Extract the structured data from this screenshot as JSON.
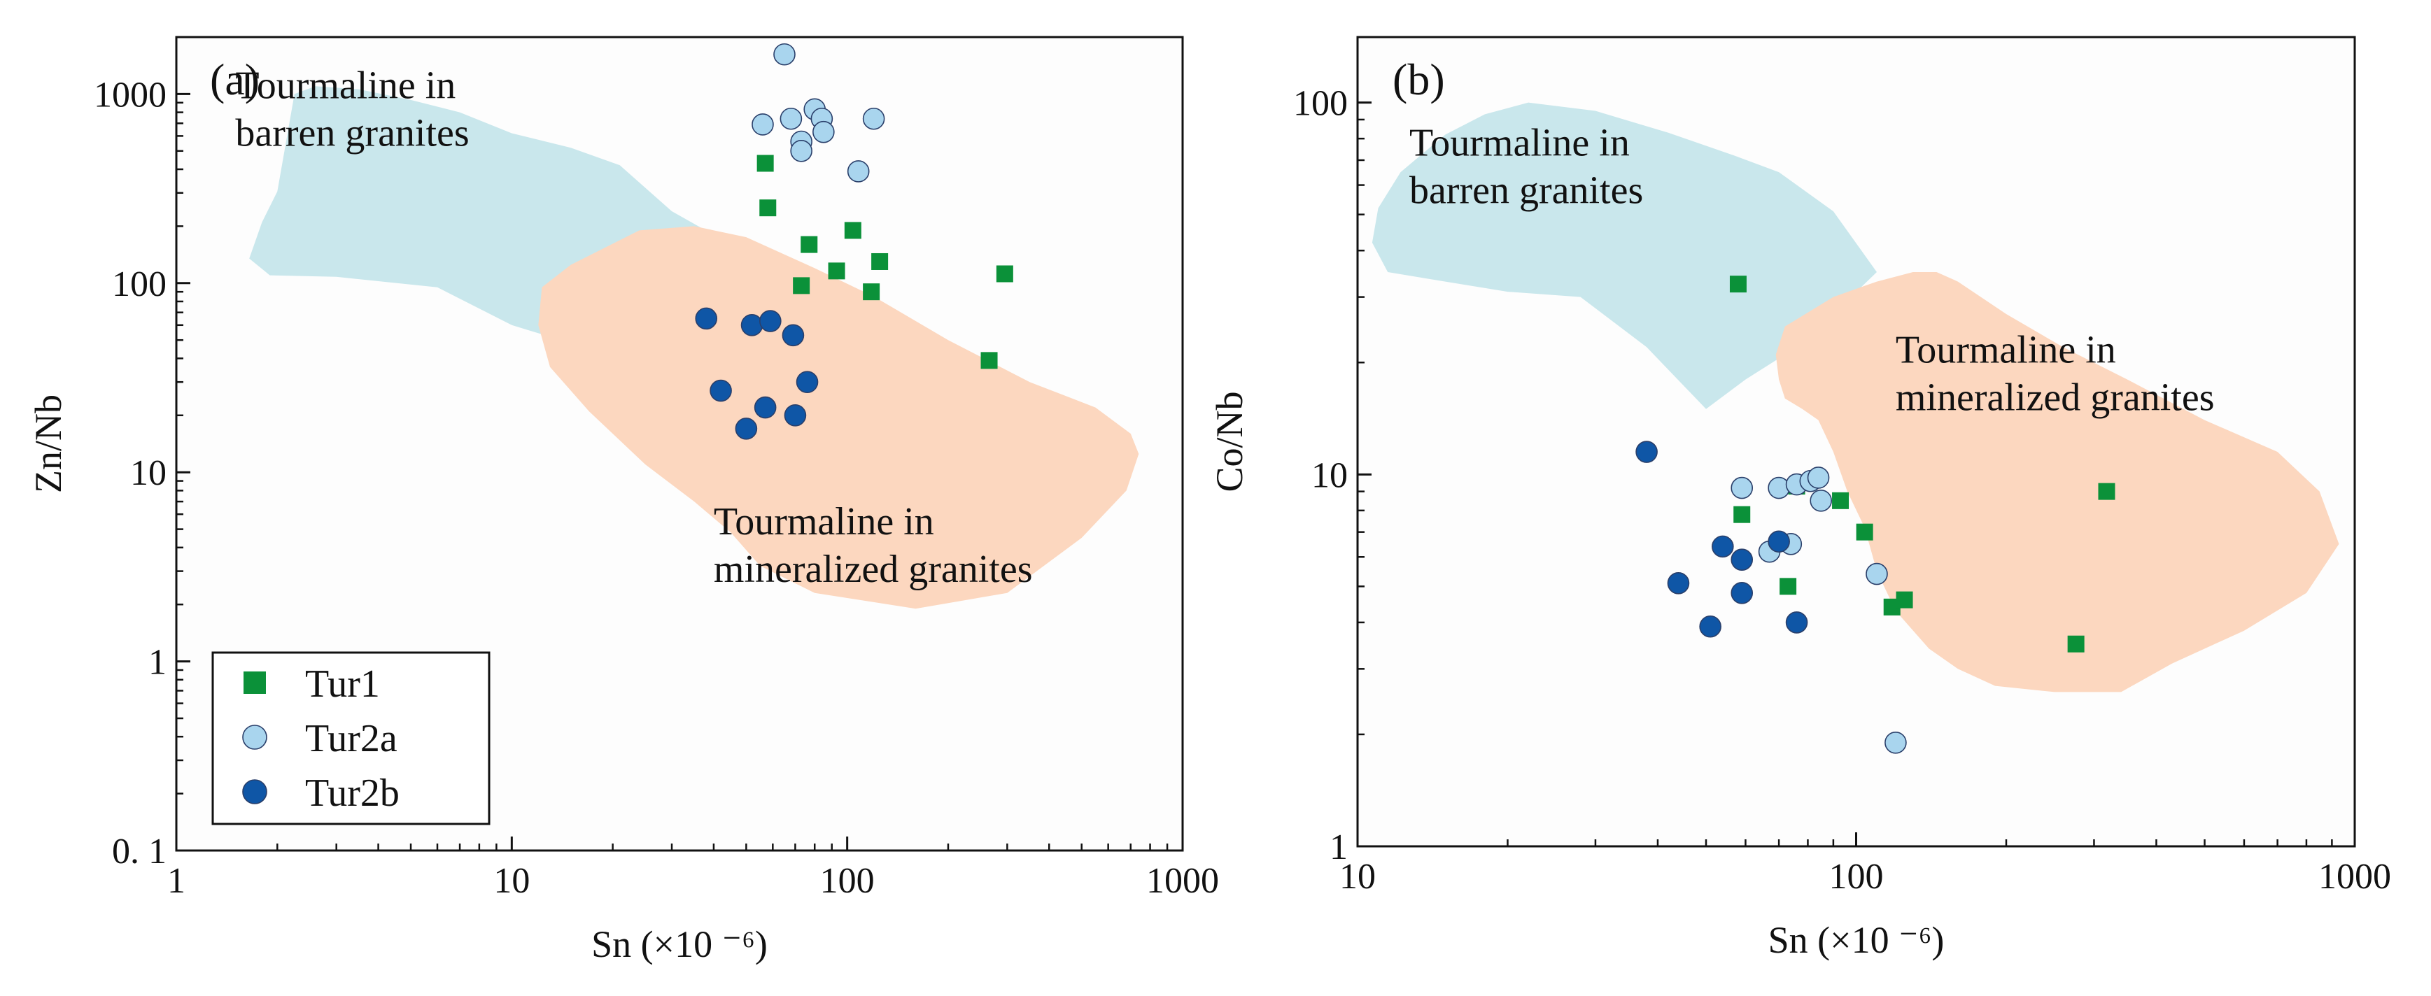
{
  "colors": {
    "tur1": "#0b9139",
    "tur2a": "#a9d5ee",
    "tur2b": "#0f56a6",
    "barren_field": "#c9e7ec",
    "mineralized_field": "#fcd7bf",
    "marker_edge": "#2a3f6a",
    "axis": "#111111"
  },
  "legend": [
    {
      "label": "Tur1",
      "marker": "square",
      "color_key": "tur1"
    },
    {
      "label": "Tur2a",
      "marker": "circle",
      "color_key": "tur2a"
    },
    {
      "label": "Tur2b",
      "marker": "circle",
      "color_key": "tur2b"
    }
  ],
  "chart_data": [
    {
      "type": "scatter",
      "panel_label": "(a)",
      "xlabel": "Sn (×10 ⁻⁶)",
      "ylabel": "Zn/Nb",
      "xscale": "log",
      "yscale": "log",
      "xlim": [
        1,
        1000
      ],
      "ylim": [
        0.1,
        2000
      ],
      "x_ticks": [
        1,
        10,
        100,
        1000
      ],
      "x_tick_labels": [
        "1",
        "10",
        "100",
        "1000"
      ],
      "y_ticks": [
        0.1,
        1,
        10,
        100,
        1000
      ],
      "y_tick_labels": [
        "0. 1",
        "1",
        "10",
        "100",
        "1000"
      ],
      "legend_position": "bottom-left",
      "fields": [
        {
          "label": "Tourmaline in barren granites",
          "label_lines": [
            "Tourmaline in",
            "barren granites"
          ],
          "label_anchor": [
            1.5,
            950
          ],
          "color_key": "barren_field",
          "polygon": [
            [
              2.25,
              1000
            ],
            [
              2.6,
              1100
            ],
            [
              3.5,
              1060
            ],
            [
              5,
              930
            ],
            [
              7,
              800
            ],
            [
              10,
              620
            ],
            [
              15,
              520
            ],
            [
              21,
              420
            ],
            [
              30,
              240
            ],
            [
              45,
              160
            ],
            [
              38,
              85
            ],
            [
              20,
              48
            ],
            [
              14,
              50
            ],
            [
              10,
              60
            ],
            [
              6,
              95
            ],
            [
              3,
              108
            ],
            [
              1.9,
              110
            ],
            [
              1.65,
              135
            ],
            [
              1.8,
              210
            ],
            [
              2.0,
              305
            ],
            [
              2.1,
              500
            ]
          ]
        },
        {
          "label": "Tourmaline in mineralized granites",
          "label_lines": [
            "Tourmaline in",
            "mineralized granites"
          ],
          "label_anchor": [
            40,
            4.7
          ],
          "color_key": "mineralized_field",
          "polygon": [
            [
              15,
              125
            ],
            [
              24,
              190
            ],
            [
              35,
              200
            ],
            [
              50,
              175
            ],
            [
              80,
              120
            ],
            [
              120,
              85
            ],
            [
              200,
              50
            ],
            [
              350,
              30
            ],
            [
              550,
              22
            ],
            [
              700,
              16
            ],
            [
              740,
              12.5
            ],
            [
              680,
              8
            ],
            [
              500,
              4.5
            ],
            [
              300,
              2.3
            ],
            [
              160,
              1.9
            ],
            [
              80,
              2.3
            ],
            [
              55,
              3.2
            ],
            [
              45,
              4.8
            ],
            [
              35,
              7
            ],
            [
              25,
              11
            ],
            [
              17,
              21
            ],
            [
              13,
              36
            ],
            [
              12,
              60
            ],
            [
              12.3,
              95
            ]
          ]
        }
      ],
      "series": [
        {
          "name": "Tur1",
          "marker": "square",
          "color_key": "tur1",
          "points": [
            [
              57,
              430
            ],
            [
              58,
              250
            ],
            [
              77,
              160
            ],
            [
              73,
              97
            ],
            [
              104,
              190
            ],
            [
              93,
              116
            ],
            [
              118,
              90
            ],
            [
              125,
              130
            ],
            [
              295,
              112
            ],
            [
              265,
              39
            ]
          ]
        },
        {
          "name": "Tur2a",
          "marker": "circle",
          "color_key": "tur2a",
          "points": [
            [
              65,
              1620
            ],
            [
              56,
              690
            ],
            [
              68,
              740
            ],
            [
              80,
              830
            ],
            [
              84,
              740
            ],
            [
              85,
              630
            ],
            [
              120,
              740
            ],
            [
              73,
              560
            ],
            [
              73,
              500
            ],
            [
              108,
              390
            ]
          ]
        },
        {
          "name": "Tur2b",
          "marker": "circle",
          "color_key": "tur2b",
          "points": [
            [
              38,
              65
            ],
            [
              52,
              60
            ],
            [
              59,
              63
            ],
            [
              69,
              53
            ],
            [
              42,
              27
            ],
            [
              57,
              22
            ],
            [
              76,
              30
            ],
            [
              50,
              17
            ],
            [
              70,
              20
            ]
          ]
        }
      ]
    },
    {
      "type": "scatter",
      "panel_label": "(b)",
      "xlabel": "Sn (×10 ⁻⁶)",
      "ylabel": "Co/Nb",
      "xscale": "log",
      "yscale": "log",
      "xlim": [
        10,
        1000
      ],
      "ylim": [
        1,
        150
      ],
      "x_ticks": [
        10,
        100,
        1000
      ],
      "x_tick_labels": [
        "10",
        "100",
        "1000"
      ],
      "y_ticks": [
        1,
        10,
        100
      ],
      "y_tick_labels": [
        "1",
        "10",
        "100"
      ],
      "fields": [
        {
          "label": "Tourmaline in barren granites",
          "label_lines": [
            "Tourmaline in",
            "barren granites"
          ],
          "label_anchor": [
            12.7,
            72
          ],
          "color_key": "barren_field",
          "polygon": [
            [
              12.2,
              65
            ],
            [
              15,
              82
            ],
            [
              18,
              93
            ],
            [
              22,
              100
            ],
            [
              30,
              95
            ],
            [
              42,
              83
            ],
            [
              57,
              72
            ],
            [
              70,
              65
            ],
            [
              90,
              51
            ],
            [
              110,
              35
            ],
            [
              90,
              27
            ],
            [
              72,
              21
            ],
            [
              60,
              18
            ],
            [
              50,
              15
            ],
            [
              38,
              22
            ],
            [
              28,
              30
            ],
            [
              20,
              31
            ],
            [
              15,
              33
            ],
            [
              11.5,
              35
            ],
            [
              10.7,
              42
            ],
            [
              11,
              52
            ]
          ]
        },
        {
          "label": "Tourmaline in mineralized granites",
          "label_lines": [
            "Tourmaline in",
            "mineralized granites"
          ],
          "label_anchor": [
            120,
            20
          ],
          "color_key": "mineralized_field",
          "polygon": [
            [
              90,
              30
            ],
            [
              110,
              33
            ],
            [
              130,
              35
            ],
            [
              145,
              35
            ],
            [
              160,
              33
            ],
            [
              200,
              27
            ],
            [
              260,
              22
            ],
            [
              350,
              18
            ],
            [
              500,
              14
            ],
            [
              700,
              11.5
            ],
            [
              850,
              9
            ],
            [
              930,
              6.5
            ],
            [
              800,
              4.8
            ],
            [
              600,
              3.8
            ],
            [
              430,
              3.1
            ],
            [
              340,
              2.6
            ],
            [
              250,
              2.6
            ],
            [
              190,
              2.7
            ],
            [
              160,
              3.0
            ],
            [
              140,
              3.4
            ],
            [
              120,
              4.3
            ],
            [
              110,
              5.5
            ],
            [
              104,
              7.2
            ],
            [
              96,
              9.0
            ],
            [
              90,
              11.5
            ],
            [
              84,
              14
            ],
            [
              78,
              15
            ],
            [
              72,
              16
            ],
            [
              70,
              18
            ],
            [
              69,
              21
            ],
            [
              72,
              25
            ]
          ]
        }
      ],
      "series": [
        {
          "name": "Tur1",
          "marker": "square",
          "color_key": "tur1",
          "points": [
            [
              58,
              32.5
            ],
            [
              59,
              7.8
            ],
            [
              76,
              9.3
            ],
            [
              93,
              8.5
            ],
            [
              73,
              5.0
            ],
            [
              104,
              7.0
            ],
            [
              118,
              4.4
            ],
            [
              125,
              4.6
            ],
            [
              276,
              3.5
            ],
            [
              318,
              9.0
            ]
          ]
        },
        {
          "name": "Tur2a",
          "marker": "circle",
          "color_key": "tur2a",
          "points": [
            [
              59,
              9.2
            ],
            [
              70,
              9.2
            ],
            [
              76,
              9.4
            ],
            [
              81,
              9.6
            ],
            [
              84,
              9.8
            ],
            [
              85,
              8.5
            ],
            [
              67,
              6.2
            ],
            [
              74,
              6.5
            ],
            [
              110,
              5.4
            ],
            [
              120,
              1.9
            ]
          ]
        },
        {
          "name": "Tur2b",
          "marker": "circle",
          "color_key": "tur2b",
          "points": [
            [
              38,
              11.5
            ],
            [
              54,
              6.4
            ],
            [
              59,
              5.9
            ],
            [
              70,
              6.6
            ],
            [
              44,
              5.1
            ],
            [
              59,
              4.8
            ],
            [
              51,
              3.9
            ],
            [
              76,
              4.0
            ]
          ]
        }
      ]
    }
  ]
}
